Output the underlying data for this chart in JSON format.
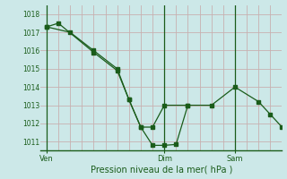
{
  "xlabel": "Pression niveau de la mer( hPa )",
  "bg_color": "#cce8e8",
  "line_color": "#1a5c1a",
  "marker_color": "#1a5c1a",
  "ylim": [
    1010.5,
    1018.5
  ],
  "yticks": [
    1011,
    1012,
    1013,
    1014,
    1015,
    1016,
    1017,
    1018
  ],
  "day_labels": [
    "Ven",
    "Dim",
    "Sam"
  ],
  "day_positions": [
    0,
    10,
    16
  ],
  "xlim": [
    -0.5,
    20
  ],
  "series1_x": [
    0,
    2,
    4,
    6,
    7,
    8,
    9,
    10,
    12,
    14,
    16,
    18,
    19,
    20
  ],
  "series1_y": [
    1017.3,
    1017.0,
    1016.0,
    1015.0,
    1013.3,
    1011.8,
    1011.8,
    1013.0,
    1013.0,
    1013.0,
    1014.0,
    1013.2,
    1012.5,
    1011.8
  ],
  "series2_x": [
    0,
    1,
    4,
    6,
    7,
    8,
    9,
    10,
    11,
    12
  ],
  "series2_y": [
    1017.3,
    1017.5,
    1015.9,
    1014.9,
    1013.3,
    1011.8,
    1010.8,
    1010.8,
    1010.85,
    1013.0
  ],
  "minor_vline_color": "#c8b0b0",
  "major_vline_color": "#1a5c1a",
  "hgrid_color": "#c8b0b0",
  "num_minor_vcols": 20
}
